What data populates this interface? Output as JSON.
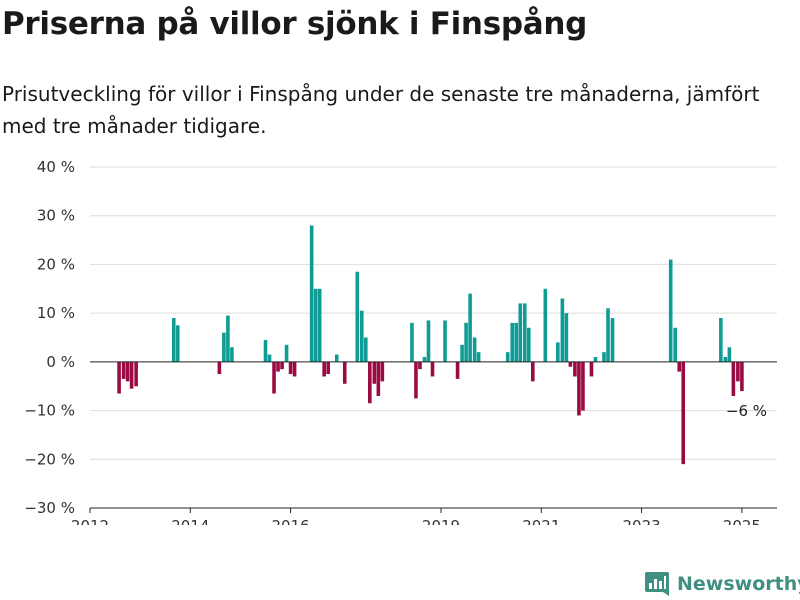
{
  "title": "Priserna på villor sjönk i Finspång",
  "subtitle": "Prisutveckling för villor i Finspång under de senaste tre månaderna, jämfört med tre månader tidigare.",
  "logo": {
    "text": "Newsworthy",
    "icon": "newsworthy-logo-icon"
  },
  "colors": {
    "positive": "#0f9c94",
    "negative": "#9b0b43",
    "grid": "#dddddd",
    "axis": "#222222",
    "logo": "#3f8f82"
  },
  "chart_data": {
    "type": "bar",
    "grid": "horizontal",
    "ylim": [
      -30,
      40
    ],
    "yticks": [
      -30,
      -20,
      -10,
      0,
      10,
      20,
      30,
      40
    ],
    "ytick_labels": [
      "−30 %",
      "−20 %",
      "−10 %",
      "0 %",
      "10 %",
      "20 %",
      "30 %",
      "40 %"
    ],
    "xlim": [
      2012.0,
      2025.7
    ],
    "xtick_labels": [
      "2012",
      "2014",
      "2016",
      "2019",
      "2021",
      "2023",
      "2025"
    ],
    "xtick_positions": [
      2012.0,
      2014.0,
      2016.0,
      2019.0,
      2021.0,
      2023.0,
      2025.0
    ],
    "annotation": {
      "text": "−6 %",
      "x": 2025.0,
      "y": -6
    },
    "points": [
      {
        "x": 2012.58,
        "y": -6.5
      },
      {
        "x": 2012.67,
        "y": -3.5
      },
      {
        "x": 2012.75,
        "y": -4
      },
      {
        "x": 2012.83,
        "y": -5.5
      },
      {
        "x": 2012.92,
        "y": -5
      },
      {
        "x": 2013.67,
        "y": 9
      },
      {
        "x": 2013.75,
        "y": 7.5
      },
      {
        "x": 2014.58,
        "y": -2.5
      },
      {
        "x": 2014.67,
        "y": 6
      },
      {
        "x": 2014.75,
        "y": 9.5
      },
      {
        "x": 2014.83,
        "y": 3
      },
      {
        "x": 2015.5,
        "y": 4.5
      },
      {
        "x": 2015.58,
        "y": 1.5
      },
      {
        "x": 2015.67,
        "y": -6.5
      },
      {
        "x": 2015.75,
        "y": -2
      },
      {
        "x": 2015.83,
        "y": -1.5
      },
      {
        "x": 2015.92,
        "y": 3.5
      },
      {
        "x": 2016.0,
        "y": -2.5
      },
      {
        "x": 2016.08,
        "y": -3
      },
      {
        "x": 2016.42,
        "y": 28
      },
      {
        "x": 2016.5,
        "y": 15
      },
      {
        "x": 2016.58,
        "y": 15
      },
      {
        "x": 2016.67,
        "y": -3
      },
      {
        "x": 2016.75,
        "y": -2.5
      },
      {
        "x": 2016.92,
        "y": 1.5
      },
      {
        "x": 2017.08,
        "y": -4.5
      },
      {
        "x": 2017.33,
        "y": 18.5
      },
      {
        "x": 2017.42,
        "y": 10.5
      },
      {
        "x": 2017.5,
        "y": 5
      },
      {
        "x": 2017.58,
        "y": -8.5
      },
      {
        "x": 2017.67,
        "y": -4.5
      },
      {
        "x": 2017.75,
        "y": -7
      },
      {
        "x": 2017.83,
        "y": -4
      },
      {
        "x": 2018.42,
        "y": 8
      },
      {
        "x": 2018.5,
        "y": -7.5
      },
      {
        "x": 2018.58,
        "y": -1.5
      },
      {
        "x": 2018.67,
        "y": 1
      },
      {
        "x": 2018.75,
        "y": 8.5
      },
      {
        "x": 2018.83,
        "y": -3
      },
      {
        "x": 2019.08,
        "y": 8.5
      },
      {
        "x": 2019.33,
        "y": -3.5
      },
      {
        "x": 2019.42,
        "y": 3.5
      },
      {
        "x": 2019.5,
        "y": 8
      },
      {
        "x": 2019.58,
        "y": 14
      },
      {
        "x": 2019.67,
        "y": 5
      },
      {
        "x": 2019.75,
        "y": 2
      },
      {
        "x": 2020.33,
        "y": 2
      },
      {
        "x": 2020.42,
        "y": 8
      },
      {
        "x": 2020.5,
        "y": 8
      },
      {
        "x": 2020.58,
        "y": 12
      },
      {
        "x": 2020.67,
        "y": 12
      },
      {
        "x": 2020.75,
        "y": 7
      },
      {
        "x": 2020.83,
        "y": -4
      },
      {
        "x": 2021.08,
        "y": 15
      },
      {
        "x": 2021.33,
        "y": 4
      },
      {
        "x": 2021.42,
        "y": 13
      },
      {
        "x": 2021.5,
        "y": 10
      },
      {
        "x": 2021.58,
        "y": -1
      },
      {
        "x": 2021.67,
        "y": -3
      },
      {
        "x": 2021.75,
        "y": -11
      },
      {
        "x": 2021.83,
        "y": -10
      },
      {
        "x": 2022.0,
        "y": -3
      },
      {
        "x": 2022.08,
        "y": 1
      },
      {
        "x": 2022.25,
        "y": 2
      },
      {
        "x": 2022.33,
        "y": 11
      },
      {
        "x": 2022.42,
        "y": 9
      },
      {
        "x": 2023.58,
        "y": 21
      },
      {
        "x": 2023.67,
        "y": 7
      },
      {
        "x": 2023.75,
        "y": -2
      },
      {
        "x": 2023.83,
        "y": -21
      },
      {
        "x": 2024.58,
        "y": 9
      },
      {
        "x": 2024.67,
        "y": 1
      },
      {
        "x": 2024.75,
        "y": 3
      },
      {
        "x": 2024.83,
        "y": -7
      },
      {
        "x": 2024.92,
        "y": -4
      },
      {
        "x": 2025.0,
        "y": -6
      }
    ]
  }
}
